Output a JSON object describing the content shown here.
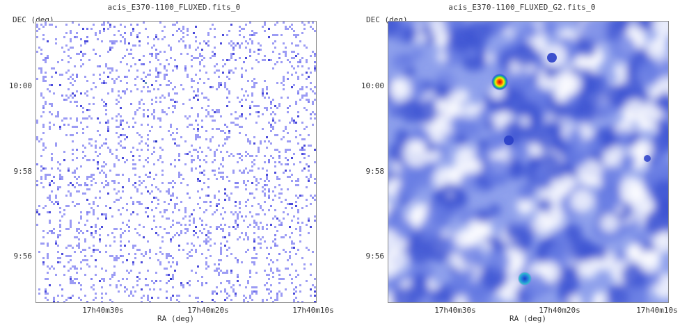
{
  "left_panel": {
    "title": "acis_E370-1100_FLUXED.fits_0",
    "ylabel": "DEC (deg)",
    "xlabel": "RA (deg)",
    "yticks": [
      "10:00",
      "9:58",
      "9:56"
    ],
    "xticks": [
      "17h40m30s",
      "17h40m20s",
      "17h40m10s"
    ]
  },
  "right_panel": {
    "title": "acis_E370-1100_FLUXED_G2.fits_0",
    "ylabel": "DEC (deg)",
    "xlabel": "RA (deg)",
    "yticks": [
      "10:00",
      "9:58",
      "9:56"
    ],
    "xticks": [
      "17h40m30s",
      "17h40m20s",
      "17h40m10s"
    ]
  },
  "colors": {
    "background": "#ffffff",
    "noise_blue": "#7b7bf0",
    "smooth_blue": "#5a6ee0",
    "source_peak": "#ff2200",
    "axis": "#888888"
  }
}
